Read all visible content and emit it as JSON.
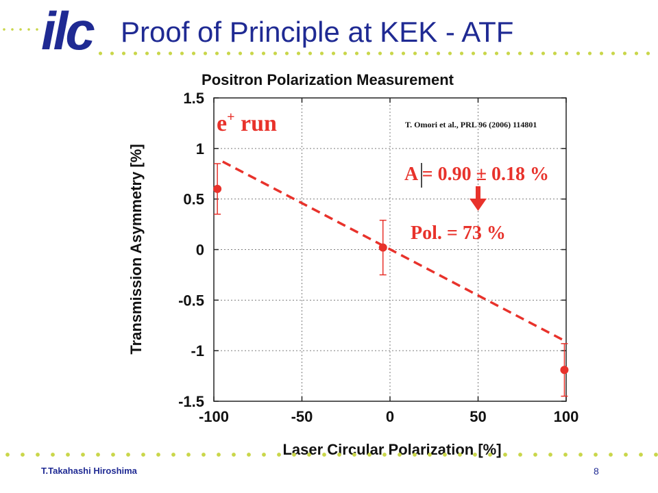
{
  "slide": {
    "logo_text": "ilc",
    "title": "Proof of Principle at KEK - ATF",
    "author": "T.Takahashi  Hiroshima",
    "page_number": "8"
  },
  "colors": {
    "title_blue": "#1f2a93",
    "dot_green": "#c9d64a",
    "data_red": "#e8322b"
  },
  "chart_data": {
    "type": "scatter",
    "title": "Positron Polarization Measurement",
    "xlabel": "Laser Circular Polarization [%]",
    "ylabel": "Transmission Asymmetry [%]",
    "xlim": [
      -100,
      100
    ],
    "ylim": [
      -1.5,
      1.5
    ],
    "x_ticks": [
      -100,
      -50,
      0,
      50,
      100
    ],
    "x_tick_labels": [
      "-100",
      "-50",
      "0",
      "50",
      "100"
    ],
    "y_ticks": [
      1.5,
      1,
      0.5,
      0,
      -0.5,
      -1,
      -1.5
    ],
    "y_tick_labels": [
      "1.5",
      "1",
      "0.5",
      "0",
      "-0.5",
      "-1",
      "-1.5"
    ],
    "grid": true,
    "series": [
      {
        "type": "scatter",
        "x": [
          -98,
          -4,
          99
        ],
        "y": [
          0.6,
          0.02,
          -1.19
        ],
        "err": [
          0.25,
          0.27,
          0.26
        ],
        "color": "#e8322b"
      },
      {
        "type": "line",
        "style": "dashed",
        "x": [
          -95,
          100
        ],
        "y": [
          0.87,
          -0.91
        ],
        "color": "#e8322b"
      }
    ],
    "annotations": {
      "run_label": {
        "main": "e",
        "sup": "+",
        "rest": " run"
      },
      "reference": "T. Omori et  al.,  PRL 96 (2006) 114801",
      "asymmetry": "A  = 0.90 ± 0.18  %",
      "polarization": "Pol. =  73  %"
    }
  }
}
